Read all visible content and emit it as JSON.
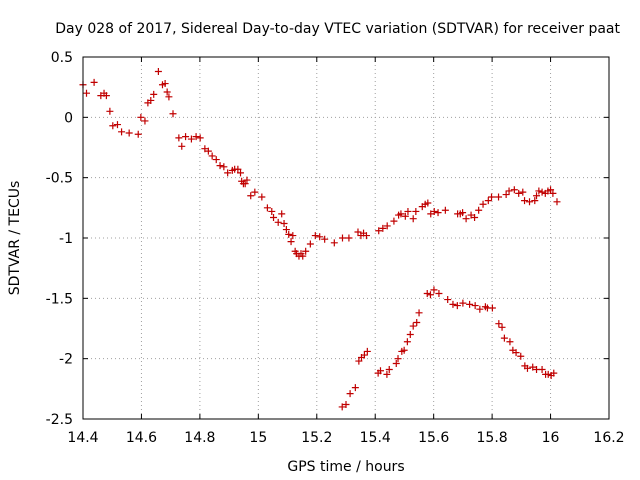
{
  "chart_data": {
    "type": "scatter",
    "title": "Day 028 of 2017, Sidereal Day-to-day VTEC variation (SDTVAR) for receiver paat",
    "xlabel": "GPS time / hours",
    "ylabel": "SDTVAR / TECUs",
    "xlim": [
      14.4,
      16.2
    ],
    "ylim": [
      -2.5,
      0.5
    ],
    "xticks": [
      14.4,
      14.6,
      14.8,
      15.0,
      15.2,
      15.4,
      15.6,
      15.8,
      16.0,
      16.2
    ],
    "xtick_labels": [
      "14.4",
      "14.6",
      "14.8",
      "15",
      "15.2",
      "15.4",
      "15.6",
      "15.8",
      "16",
      "16.2"
    ],
    "yticks": [
      0.5,
      0.0,
      -0.5,
      -1.0,
      -1.5,
      -2.0,
      -2.5
    ],
    "ytick_labels": [
      "0.5",
      "0",
      "-0.5",
      "-1",
      "-1.5",
      "-2",
      "-2.5"
    ],
    "grid": true,
    "marker": "+",
    "color": "#c00000",
    "series": [
      {
        "name": "track-upper",
        "x": [
          14.4,
          14.412,
          14.438,
          14.461,
          14.472,
          14.48,
          14.492,
          14.502,
          14.518,
          14.532,
          14.558,
          14.589,
          14.598,
          14.612,
          14.622,
          14.632,
          14.642,
          14.658,
          14.672,
          14.681,
          14.688,
          14.694,
          14.708,
          14.728,
          14.738,
          14.751,
          14.771,
          14.787,
          14.801,
          14.817,
          14.829,
          14.842,
          14.856,
          14.869,
          14.882,
          14.895,
          14.911,
          14.919,
          14.93,
          14.939,
          14.943,
          14.949,
          14.955,
          14.961,
          14.974,
          14.988,
          15.012,
          15.031,
          15.046,
          15.052,
          15.068,
          15.08,
          15.088,
          15.096,
          15.104,
          15.112,
          15.118,
          15.126,
          15.131,
          15.139,
          15.146,
          15.152,
          15.162,
          15.178,
          15.195,
          15.21,
          15.227,
          15.26,
          15.288,
          15.31,
          15.341,
          15.351,
          15.36,
          15.37,
          15.412,
          15.426,
          15.441,
          15.464,
          15.48,
          15.488,
          15.503,
          15.512,
          15.53,
          15.539,
          15.561,
          15.571,
          15.58,
          15.59,
          15.602,
          15.615,
          15.64,
          15.682,
          15.691,
          15.699,
          15.711,
          15.728,
          15.74,
          15.754,
          15.769,
          15.787,
          15.798,
          15.822,
          15.848,
          15.858,
          15.876,
          15.891,
          15.905,
          15.911,
          15.928,
          15.946,
          15.952,
          15.96,
          15.971,
          15.982,
          15.991,
          16.0,
          16.008,
          16.022
        ],
        "y": [
          0.27,
          0.2,
          0.29,
          0.18,
          0.2,
          0.18,
          0.05,
          -0.07,
          -0.06,
          -0.12,
          -0.13,
          -0.14,
          0.0,
          -0.03,
          0.12,
          0.14,
          0.19,
          0.38,
          0.27,
          0.28,
          0.21,
          0.17,
          0.03,
          -0.17,
          -0.24,
          -0.16,
          -0.18,
          -0.16,
          -0.17,
          -0.26,
          -0.28,
          -0.32,
          -0.35,
          -0.4,
          -0.41,
          -0.46,
          -0.44,
          -0.43,
          -0.43,
          -0.46,
          -0.53,
          -0.55,
          -0.55,
          -0.52,
          -0.65,
          -0.62,
          -0.66,
          -0.75,
          -0.78,
          -0.83,
          -0.87,
          -0.8,
          -0.88,
          -0.93,
          -0.97,
          -1.03,
          -0.98,
          -1.11,
          -1.13,
          -1.15,
          -1.13,
          -1.15,
          -1.11,
          -1.05,
          -0.98,
          -0.99,
          -1.01,
          -1.04,
          -1.0,
          -1.0,
          -0.95,
          -0.98,
          -0.96,
          -0.98,
          -0.94,
          -0.92,
          -0.9,
          -0.86,
          -0.81,
          -0.8,
          -0.82,
          -0.78,
          -0.84,
          -0.78,
          -0.74,
          -0.72,
          -0.71,
          -0.8,
          -0.78,
          -0.79,
          -0.77,
          -0.8,
          -0.8,
          -0.79,
          -0.84,
          -0.81,
          -0.83,
          -0.77,
          -0.72,
          -0.69,
          -0.66,
          -0.66,
          -0.64,
          -0.61,
          -0.6,
          -0.63,
          -0.62,
          -0.69,
          -0.7,
          -0.69,
          -0.65,
          -0.61,
          -0.62,
          -0.63,
          -0.61,
          -0.6,
          -0.63,
          -0.7
        ]
      },
      {
        "name": "track-lower",
        "x": [
          15.287,
          15.3,
          15.314,
          15.332,
          15.344,
          15.353,
          15.363,
          15.373,
          15.41,
          15.418,
          15.44,
          15.448,
          15.472,
          15.478,
          15.491,
          15.499,
          15.51,
          15.52,
          15.53,
          15.542,
          15.55,
          15.578,
          15.589,
          15.601,
          15.618,
          15.648,
          15.666,
          15.681,
          15.7,
          15.723,
          15.742,
          15.758,
          15.777,
          15.784,
          15.801,
          15.823,
          15.834,
          15.842,
          15.861,
          15.871,
          15.882,
          15.898,
          15.912,
          15.921,
          15.939,
          15.952,
          15.971,
          15.983,
          15.992,
          16.002,
          16.011
        ],
        "y": [
          -2.4,
          -2.38,
          -2.29,
          -2.24,
          -2.02,
          -1.99,
          -1.97,
          -1.94,
          -2.12,
          -2.1,
          -2.13,
          -2.09,
          -2.04,
          -2.0,
          -1.94,
          -1.93,
          -1.86,
          -1.8,
          -1.73,
          -1.7,
          -1.62,
          -1.46,
          -1.47,
          -1.43,
          -1.46,
          -1.51,
          -1.55,
          -1.56,
          -1.54,
          -1.55,
          -1.56,
          -1.59,
          -1.57,
          -1.58,
          -1.58,
          -1.71,
          -1.74,
          -1.83,
          -1.86,
          -1.93,
          -1.95,
          -1.98,
          -2.06,
          -2.08,
          -2.07,
          -2.09,
          -2.09,
          -2.13,
          -2.13,
          -2.14,
          -2.12
        ]
      }
    ]
  }
}
